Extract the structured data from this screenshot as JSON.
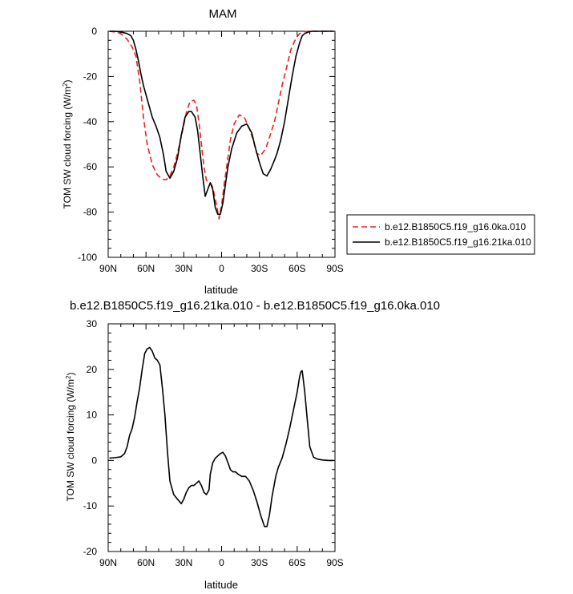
{
  "chart_data": [
    {
      "type": "line",
      "title": "MAM",
      "xlabel": "latitude",
      "ylabel": "TOM SW cloud forcing (W/m",
      "ylabel_sup": "2",
      "ylabel_tail": ")",
      "xlim": [
        90,
        -90
      ],
      "ylim": [
        -100,
        0
      ],
      "x_ticks": [
        90,
        60,
        30,
        0,
        -30,
        -60,
        -90
      ],
      "x_tick_labels": [
        "90N",
        "60N",
        "30N",
        "0",
        "30S",
        "60S",
        "90S"
      ],
      "y_ticks": [
        0,
        -20,
        -40,
        -60,
        -80,
        -100
      ],
      "y_tick_labels": [
        "0",
        "-20",
        "-40",
        "-60",
        "-80",
        "-100"
      ],
      "grid": false,
      "legend": "right",
      "series": [
        {
          "name": "b.e12.B1850C5.f19_g16.0ka.010",
          "color": "#e8231e",
          "dash": "dashed",
          "x": [
            89,
            85,
            80,
            75,
            71,
            68,
            65,
            62,
            59,
            55,
            51,
            47,
            44,
            41,
            38,
            35,
            31,
            28,
            25,
            22,
            20,
            18,
            16,
            14,
            12,
            9,
            7,
            4,
            2,
            0,
            -2,
            -5,
            -7,
            -10,
            -14,
            -18,
            -22,
            -25,
            -28,
            -31,
            -35,
            -38,
            -42,
            -45,
            -48,
            -52,
            -55,
            -59,
            -62,
            -65,
            -68,
            -72,
            -75,
            -80,
            -85,
            -89
          ],
          "y": [
            0,
            -0.3,
            -1,
            -3.5,
            -7,
            -11,
            -22,
            -38,
            -50,
            -59,
            -63.5,
            -65.5,
            -65.7,
            -64,
            -60,
            -54,
            -44,
            -36,
            -31,
            -30.5,
            -32.5,
            -40,
            -50,
            -60,
            -66,
            -67,
            -69,
            -77,
            -83,
            -77,
            -68,
            -56,
            -48,
            -41,
            -37,
            -38,
            -43,
            -48,
            -54,
            -55,
            -52,
            -47,
            -40,
            -32,
            -24,
            -15,
            -8,
            -3,
            -1,
            -0.3,
            0,
            0,
            0,
            0,
            0,
            0
          ]
        },
        {
          "name": "b.e12.B1850C5.f19_g16.21ka.010",
          "color": "#000000",
          "dash": "solid",
          "x": [
            89,
            85,
            80,
            75,
            72,
            70,
            68,
            66,
            64,
            62,
            59,
            55,
            52,
            49,
            46,
            44,
            41,
            38,
            35,
            32,
            29,
            26,
            24,
            21,
            19,
            17,
            15,
            13,
            11,
            9,
            7,
            5,
            3,
            1,
            -1,
            -3,
            -5,
            -8,
            -12,
            -16,
            -20,
            -24,
            -27,
            -30,
            -33,
            -36,
            -39,
            -42,
            -44,
            -47,
            -50,
            -53,
            -56,
            -59,
            -62,
            -64,
            -66,
            -69,
            -72,
            -76,
            -80,
            -85,
            -89
          ],
          "y": [
            0,
            0,
            -0.3,
            -1,
            -2,
            -4,
            -8,
            -13,
            -19,
            -24,
            -30,
            -38,
            -42,
            -47,
            -55,
            -62,
            -65,
            -62,
            -56,
            -46,
            -38,
            -35.5,
            -35.5,
            -38,
            -44,
            -54,
            -64,
            -73,
            -70,
            -67,
            -70,
            -78,
            -81,
            -81,
            -76,
            -68,
            -60,
            -52,
            -45,
            -42,
            -41,
            -45,
            -52,
            -58,
            -63,
            -64,
            -61,
            -57,
            -54,
            -48,
            -40,
            -30,
            -20,
            -11,
            -5,
            -2,
            -1,
            -0.3,
            0,
            0,
            0,
            0,
            0
          ]
        }
      ]
    },
    {
      "type": "line",
      "title": "b.e12.B1850C5.f19_g16.21ka.010 - b.e12.B1850C5.f19_g16.0ka.010",
      "xlabel": "latitude",
      "ylabel": "TOM SW cloud forcing (W/m",
      "ylabel_sup": "2",
      "ylabel_tail": ")",
      "xlim": [
        90,
        -90
      ],
      "ylim": [
        -20,
        30
      ],
      "x_ticks": [
        90,
        60,
        30,
        0,
        -30,
        -60,
        -90
      ],
      "x_tick_labels": [
        "90N",
        "60N",
        "30N",
        "0",
        "30S",
        "60S",
        "90S"
      ],
      "y_ticks": [
        30,
        20,
        10,
        0,
        -10,
        -20
      ],
      "y_tick_labels": [
        "30",
        "20",
        "10",
        "0",
        "-10",
        "-20"
      ],
      "grid": false,
      "series": [
        {
          "color": "#000000",
          "dash": "solid",
          "x": [
            89,
            85,
            80,
            77,
            75,
            73,
            71,
            69,
            67,
            65,
            63,
            61,
            59,
            57,
            55,
            53,
            51,
            49,
            47,
            45,
            43,
            41,
            38,
            35,
            32,
            30,
            28,
            26,
            24,
            22,
            20,
            18,
            16,
            14,
            12,
            10,
            9,
            7,
            5,
            3,
            1,
            -1,
            -3,
            -5,
            -7,
            -9,
            -11,
            -13,
            -16,
            -19,
            -22,
            -25,
            -28,
            -31,
            -34,
            -36,
            -38,
            -40,
            -43,
            -45,
            -48,
            -51,
            -54,
            -57,
            -60,
            -62,
            -63,
            -64,
            -66,
            -68,
            -70,
            -73,
            -76,
            -80,
            -85,
            -89
          ],
          "y": [
            0.5,
            0.6,
            0.8,
            1.5,
            3,
            5.5,
            7,
            9.5,
            13,
            16,
            20,
            23.5,
            24.5,
            24.8,
            24,
            22.5,
            22,
            21,
            16,
            10,
            2,
            -4.5,
            -7.5,
            -8.5,
            -9.5,
            -8.5,
            -7,
            -6,
            -5.5,
            -5.5,
            -5,
            -4.5,
            -5.5,
            -7,
            -7.5,
            -6.5,
            -3,
            -0.5,
            0.5,
            1,
            1.5,
            1.8,
            1,
            -0.5,
            -2,
            -2.5,
            -2.5,
            -3,
            -3.5,
            -3.5,
            -4.5,
            -6.5,
            -9,
            -12,
            -14.5,
            -14.5,
            -12,
            -8,
            -3.5,
            -1.5,
            0.5,
            3.5,
            7,
            11,
            15,
            18.5,
            19.5,
            19.7,
            15,
            9,
            3,
            0.7,
            0.3,
            0.1,
            0,
            0
          ]
        }
      ]
    }
  ]
}
